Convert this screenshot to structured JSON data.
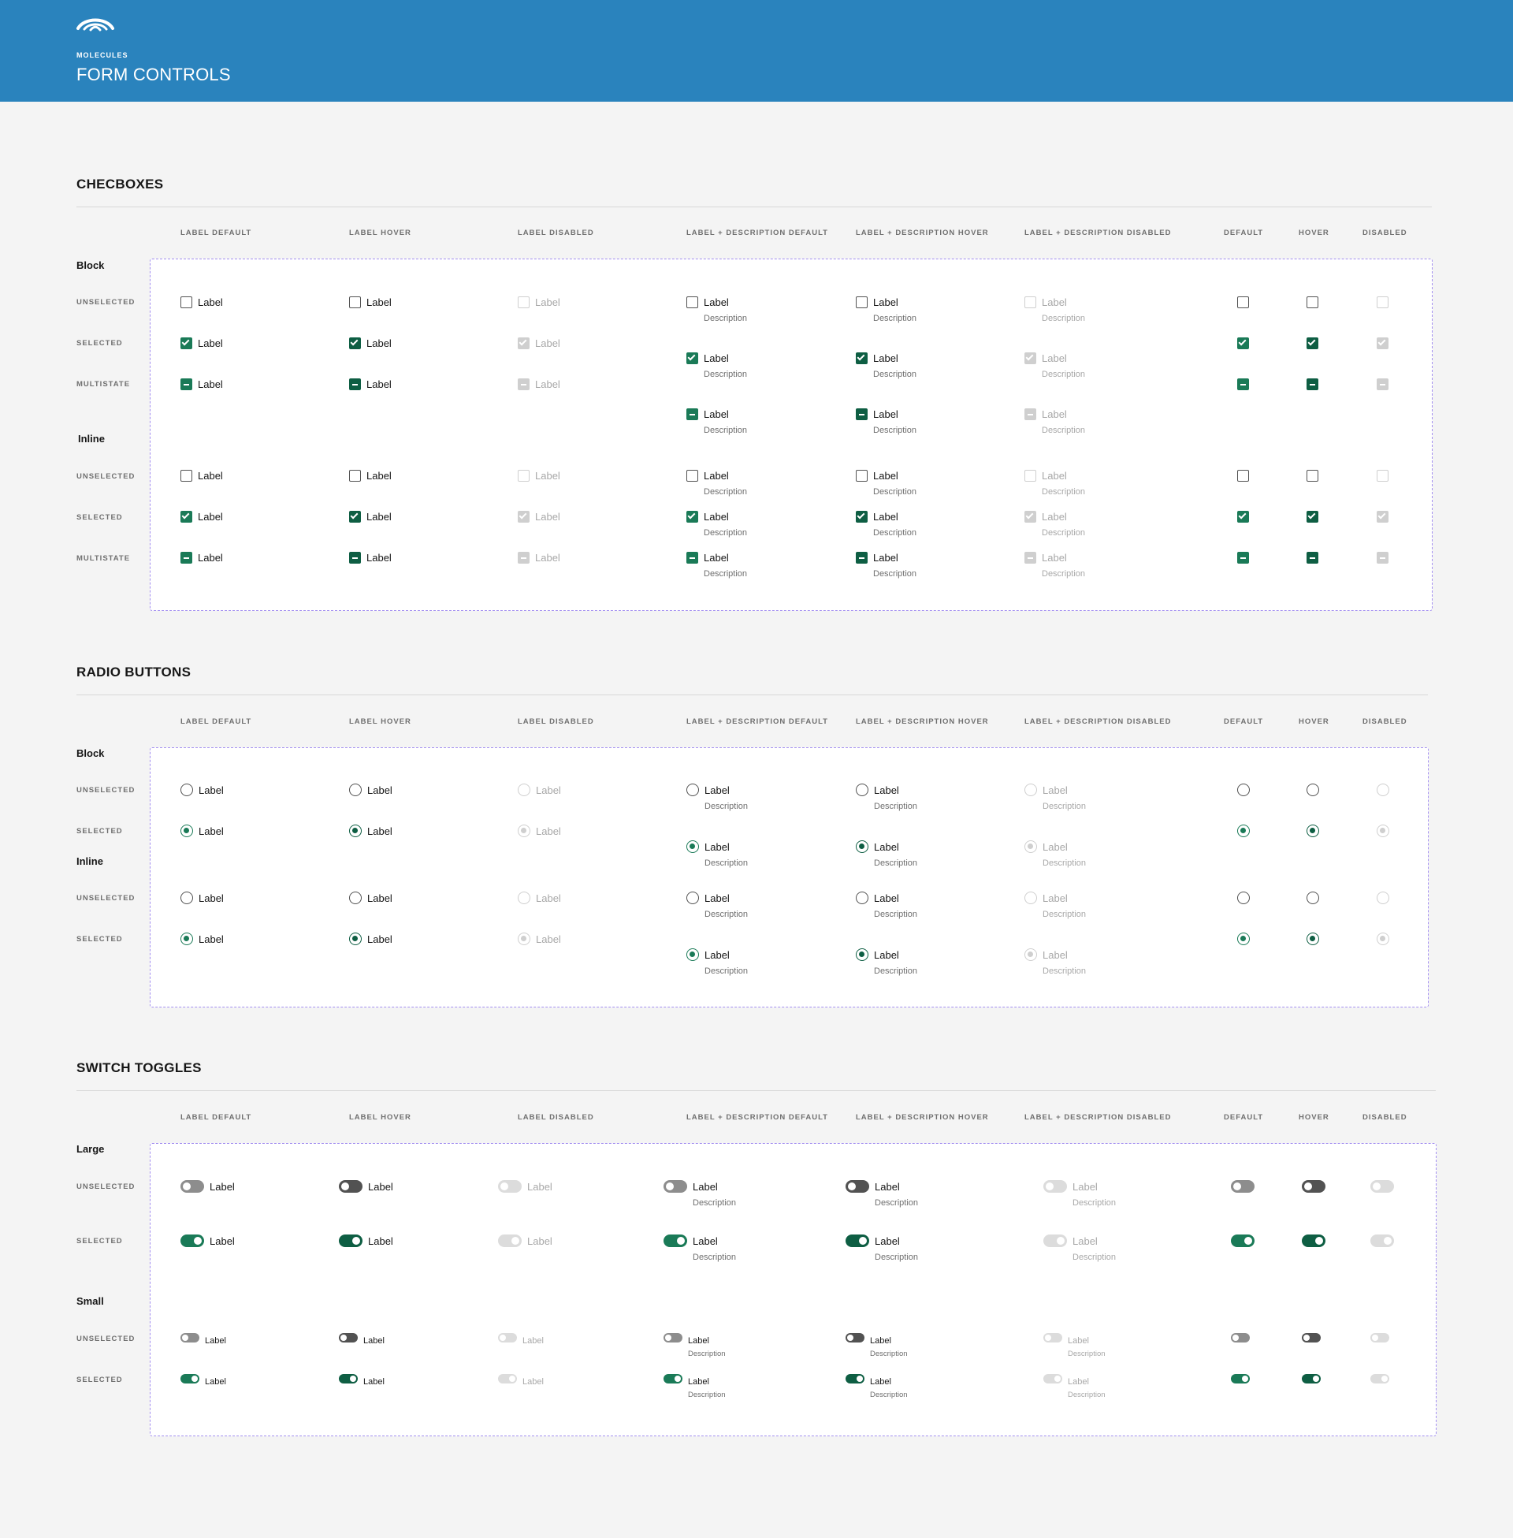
{
  "header": {
    "eyebrow": "MOLECULES",
    "title": "FORM CONTROLS",
    "bg_color": "#2a83bd"
  },
  "colors": {
    "selected": "#1a7a57",
    "selected_hover": "#0e5e43",
    "disabled": "#cfcfcf",
    "page_bg": "#f4f4f4",
    "dashed_frame": "#a38ff0"
  },
  "columns": [
    "LABEL DEFAULT",
    "LABEL HOVER",
    "LABEL DISABLED",
    "LABEL + DESCRIPTION DEFAULT",
    "LABEL + DESCRIPTION HOVER",
    "LABEL + DESCRIPTION DISABLED",
    "DEFAULT",
    "HOVER",
    "DISABLED"
  ],
  "item": {
    "label": "Label",
    "description": "Description"
  },
  "checkboxes": {
    "title": "CHECBOXES",
    "group_block": "Block",
    "group_inline": "Inline",
    "rows": [
      "UNSELECTED",
      "SELECTED",
      "MULTISTATE"
    ]
  },
  "radios": {
    "title": "RADIO BUTTONS",
    "group_block": "Block",
    "group_inline": "Inline",
    "rows": [
      "UNSELECTED",
      "SELECTED"
    ]
  },
  "toggles": {
    "title": "SWITCH TOGGLES",
    "group_large": "Large",
    "group_small": "Small",
    "rows": [
      "UNSELECTED",
      "SELECTED"
    ]
  }
}
